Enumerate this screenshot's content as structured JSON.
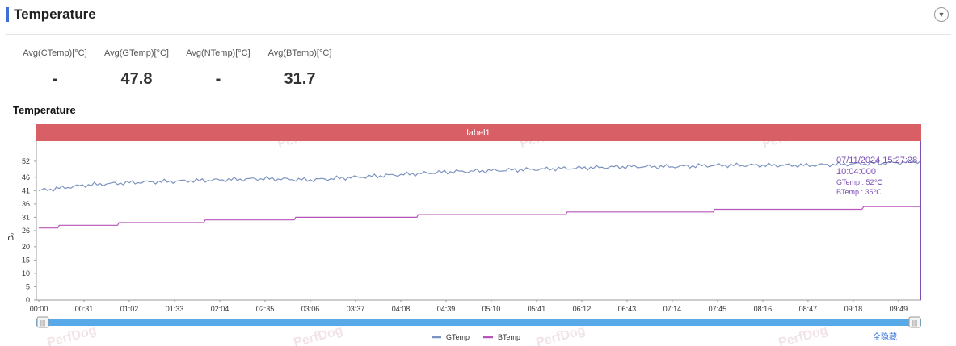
{
  "header": {
    "title": "Temperature",
    "toggle_icon": "chevron-down-icon"
  },
  "stats": [
    {
      "label": "Avg(CTemp)[°C]",
      "value": "-"
    },
    {
      "label": "Avg(GTemp)[°C]",
      "value": "47.8"
    },
    {
      "label": "Avg(NTemp)[°C]",
      "value": "-"
    },
    {
      "label": "Avg(BTemp)[°C]",
      "value": "31.7"
    }
  ],
  "chart_title": "Temperature",
  "watermark": "PerfDog",
  "show_all_label": "全隐藏",
  "tooltip": {
    "time": "07/11/2024 15:27:28",
    "time2": "10:04:000",
    "gtemp": "GTemp : 52℃",
    "btemp": "BTemp : 35℃"
  },
  "chart_data": {
    "type": "line",
    "band_label": "label1",
    "ylabel": "℃",
    "yticks": [
      0,
      5,
      10,
      15,
      20,
      26,
      31,
      36,
      41,
      46,
      52
    ],
    "xticks": [
      "00:00",
      "00:31",
      "01:02",
      "01:33",
      "02:04",
      "02:35",
      "03:06",
      "03:37",
      "04:08",
      "04:39",
      "05:10",
      "05:41",
      "06:12",
      "06:43",
      "07:14",
      "07:45",
      "08:16",
      "08:47",
      "09:18",
      "09:49"
    ],
    "x_range_seconds": [
      0,
      604
    ],
    "legend_position": "bottom-center",
    "series": [
      {
        "name": "GTemp",
        "color": "#7c93bf",
        "x": [
          0,
          31,
          62,
          93,
          124,
          155,
          186,
          217,
          248,
          279,
          310,
          341,
          372,
          403,
          434,
          465,
          496,
          527,
          558,
          589,
          604
        ],
        "values": [
          41,
          43,
          44,
          44.5,
          45,
          45.5,
          45,
          46,
          47,
          48,
          48.5,
          49,
          49.5,
          50,
          50,
          50.5,
          50.5,
          50.5,
          51,
          51.5,
          52
        ]
      },
      {
        "name": "BTemp",
        "color": "#b855b8",
        "x": [
          0,
          13,
          14,
          54,
          55,
          113,
          114,
          175,
          176,
          259,
          260,
          361,
          362,
          462,
          463,
          564,
          565,
          604
        ],
        "values": [
          27,
          27,
          28,
          28,
          29,
          29,
          30,
          30,
          31,
          31,
          32,
          32,
          33,
          33,
          34,
          34,
          35,
          35
        ]
      }
    ]
  }
}
